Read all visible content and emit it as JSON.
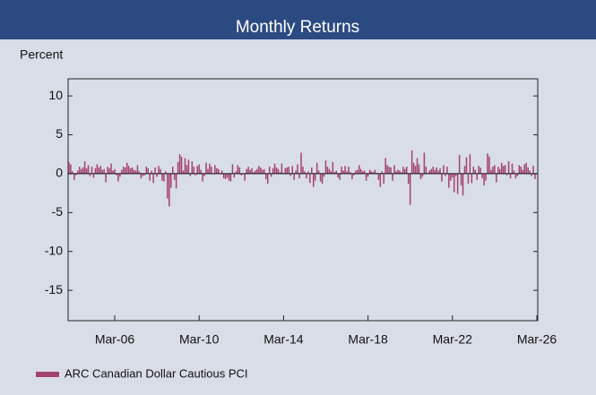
{
  "chart_data": {
    "type": "bar",
    "title": "Monthly Returns",
    "y_label": "Percent",
    "series": [
      {
        "name": "ARC Canadian Dollar Cautious PCI",
        "color": "#a3426f",
        "values": [
          1.5,
          1.2,
          0.3,
          -0.8,
          -0.2,
          0.4,
          0.9,
          0.6,
          0.8,
          1.6,
          0.7,
          1.1,
          -0.3,
          0.9,
          -0.5,
          0.7,
          1.2,
          0.8,
          1.0,
          0.5,
          0.6,
          -1.1,
          0.9,
          0.7,
          1.3,
          0.4,
          0.6,
          -0.2,
          -1.0,
          -0.4,
          0.5,
          0.9,
          0.8,
          1.4,
          1.0,
          0.7,
          0.8,
          0.5,
          0.4,
          1.1,
          0.3,
          -0.6,
          -0.3,
          -0.2,
          0.9,
          0.7,
          -0.9,
          0.4,
          -1.2,
          0.8,
          -0.4,
          1.0,
          0.6,
          -0.9,
          -1.0,
          0.3,
          -3.2,
          -4.2,
          -1.8,
          0.9,
          -0.8,
          -1.9,
          1.5,
          2.5,
          2.2,
          0.4,
          2.0,
          1.1,
          1.8,
          -0.3,
          1.6,
          0.9,
          -0.2,
          1.0,
          1.2,
          0.5,
          -1.0,
          -0.3,
          1.4,
          0.6,
          1.3,
          0.9,
          -0.1,
          1.1,
          0.7,
          0.6,
          -0.1,
          0.4,
          -0.6,
          -0.7,
          -0.5,
          -0.9,
          -1.0,
          1.2,
          -0.5,
          0.3,
          1.1,
          0.8,
          -0.2,
          -0.1,
          -0.9,
          0.6,
          0.9,
          0.5,
          0.7,
          0.2,
          0.4,
          0.6,
          1.0,
          0.8,
          0.5,
          0.6,
          -0.7,
          -1.3,
          0.9,
          -0.4,
          0.7,
          1.3,
          0.8,
          0.6,
          0.2,
          1.3,
          0.1,
          0.7,
          0.8,
          0.9,
          -0.3,
          1.0,
          -0.8,
          0.4,
          1.2,
          -0.6,
          2.7,
          0.9,
          0.3,
          -0.6,
          0.3,
          -1.2,
          0.8,
          -1.7,
          -0.9,
          1.4,
          0.4,
          -1.0,
          -1.3,
          -0.4,
          1.7,
          0.9,
          0.6,
          0.3,
          1.5,
          0.2,
          0.4,
          -0.5,
          -0.8,
          0.9,
          0.4,
          1.0,
          0.3,
          0.9,
          0.2,
          -0.7,
          -0.2,
          0.4,
          0.5,
          1.1,
          0.6,
          0.3,
          0.4,
          -0.9,
          -0.4,
          0.5,
          0.3,
          0.2,
          0.5,
          0.1,
          -0.8,
          -1.7,
          0.3,
          -1.3,
          2.0,
          1.1,
          0.9,
          0.8,
          -0.9,
          1.1,
          0.3,
          0.5,
          0.4,
          0.2,
          0.9,
          0.6,
          0.9,
          -1.3,
          -4.0,
          3.0,
          1.4,
          1.0,
          2.0,
          1.2,
          -0.7,
          -0.4,
          2.7,
          0.9,
          0.1,
          0.4,
          0.6,
          0.9,
          0.5,
          0.8,
          0.4,
          0.7,
          -1.0,
          1.1,
          -0.3,
          0.9,
          -1.8,
          -0.9,
          -0.5,
          -2.4,
          -0.3,
          -2.6,
          2.4,
          -1.5,
          -2.8,
          1.0,
          2.1,
          -1.3,
          2.5,
          -1.2,
          0.9,
          0.5,
          -0.8,
          1.0,
          0.8,
          -0.6,
          -1.5,
          -0.9,
          2.6,
          2.2,
          0.5,
          0.9,
          1.1,
          -1.1,
          0.9,
          0.6,
          1.4,
          1.0,
          1.1,
          -0.2,
          1.6,
          -0.6,
          1.3,
          0.4,
          -0.6,
          -0.3,
          1.1,
          0.9,
          0.5,
          1.2,
          1.4,
          0.8,
          0.4,
          -0.3,
          1.0,
          -0.7
        ]
      }
    ],
    "x": [
      "2004-01",
      "2004-02",
      "2004-03",
      "2004-04",
      "2004-05",
      "2004-06",
      "2004-07",
      "2004-08",
      "2004-09",
      "2004-10",
      "2004-11",
      "2004-12",
      "2005-01",
      "2005-02",
      "2005-03",
      "2005-04",
      "2005-05",
      "2005-06",
      "2005-07",
      "2005-08",
      "2005-09",
      "2005-10",
      "2005-11",
      "2005-12",
      "2006-01",
      "2006-02",
      "2006-03",
      "2006-04",
      "2006-05",
      "2006-06",
      "2006-07",
      "2006-08",
      "2006-09",
      "2006-10",
      "2006-11",
      "2006-12",
      "2007-01",
      "2007-02",
      "2007-03",
      "2007-04",
      "2007-05",
      "2007-06",
      "2007-07",
      "2007-08",
      "2007-09",
      "2007-10",
      "2007-11",
      "2007-12",
      "2008-01",
      "2008-02",
      "2008-03",
      "2008-04",
      "2008-05",
      "2008-06",
      "2008-07",
      "2008-08",
      "2008-09",
      "2008-10",
      "2008-11",
      "2008-12",
      "2009-01",
      "2009-02",
      "2009-03",
      "2009-04",
      "2009-05",
      "2009-06",
      "2009-07",
      "2009-08",
      "2009-09",
      "2009-10",
      "2009-11",
      "2009-12",
      "2010-01",
      "2010-02",
      "2010-03",
      "2010-04",
      "2010-05",
      "2010-06",
      "2010-07",
      "2010-08",
      "2010-09",
      "2010-10",
      "2010-11",
      "2010-12",
      "2011-01",
      "2011-02",
      "2011-03",
      "2011-04",
      "2011-05",
      "2011-06",
      "2011-07",
      "2011-08",
      "2011-09",
      "2011-10",
      "2011-11",
      "2011-12",
      "2012-01",
      "2012-02",
      "2012-03",
      "2012-04",
      "2012-05",
      "2012-06",
      "2012-07",
      "2012-08",
      "2012-09",
      "2012-10",
      "2012-11",
      "2012-12",
      "2013-01",
      "2013-02",
      "2013-03",
      "2013-04",
      "2013-05",
      "2013-06",
      "2013-07",
      "2013-08",
      "2013-09",
      "2013-10",
      "2013-11",
      "2013-12",
      "2014-01",
      "2014-02",
      "2014-03",
      "2014-04",
      "2014-05",
      "2014-06",
      "2014-07",
      "2014-08",
      "2014-09",
      "2014-10",
      "2014-11",
      "2014-12",
      "2015-01",
      "2015-02",
      "2015-03",
      "2015-04",
      "2015-05",
      "2015-06",
      "2015-07",
      "2015-08",
      "2015-09",
      "2015-10",
      "2015-11",
      "2015-12",
      "2016-01",
      "2016-02",
      "2016-03",
      "2016-04",
      "2016-05",
      "2016-06",
      "2016-07",
      "2016-08",
      "2016-09",
      "2016-10",
      "2016-11",
      "2016-12",
      "2017-01",
      "2017-02",
      "2017-03",
      "2017-04",
      "2017-05",
      "2017-06",
      "2017-07",
      "2017-08",
      "2017-09",
      "2017-10",
      "2017-11",
      "2017-12",
      "2018-01",
      "2018-02",
      "2018-03",
      "2018-04",
      "2018-05",
      "2018-06",
      "2018-07",
      "2018-08",
      "2018-09",
      "2018-10",
      "2018-11",
      "2018-12",
      "2019-01",
      "2019-02",
      "2019-03",
      "2019-04",
      "2019-05",
      "2019-06",
      "2019-07",
      "2019-08",
      "2019-09",
      "2019-10",
      "2019-11",
      "2019-12",
      "2020-01",
      "2020-02",
      "2020-03",
      "2020-04",
      "2020-05",
      "2020-06",
      "2020-07",
      "2020-08",
      "2020-09",
      "2020-10",
      "2020-11",
      "2020-12",
      "2021-01",
      "2021-02",
      "2021-03",
      "2021-04",
      "2021-05",
      "2021-06",
      "2021-07",
      "2021-08",
      "2021-09",
      "2021-10",
      "2021-11",
      "2021-12",
      "2022-01",
      "2022-02",
      "2022-03",
      "2022-04",
      "2022-05",
      "2022-06",
      "2022-07",
      "2022-08",
      "2022-09",
      "2022-10",
      "2022-11",
      "2022-12",
      "2023-01",
      "2023-02",
      "2023-03",
      "2023-04",
      "2023-05",
      "2023-06",
      "2023-07",
      "2023-08",
      "2023-09",
      "2023-10",
      "2023-11",
      "2023-12",
      "2024-01",
      "2024-02",
      "2024-03",
      "2024-04",
      "2024-05",
      "2024-06",
      "2024-07",
      "2024-08",
      "2024-09",
      "2024-10",
      "2024-11",
      "2024-12",
      "2025-01",
      "2025-02",
      "2025-03",
      "2025-04",
      "2025-05",
      "2025-06",
      "2025-07",
      "2025-08",
      "2025-09",
      "2025-10",
      "2025-11",
      "2025-12",
      "2026-01",
      "2026-02"
    ],
    "xticks": [
      {
        "value": "2006-03",
        "label": "Mar-06"
      },
      {
        "value": "2010-03",
        "label": "Mar-10"
      },
      {
        "value": "2014-03",
        "label": "Mar-14"
      },
      {
        "value": "2018-03",
        "label": "Mar-18"
      },
      {
        "value": "2022-03",
        "label": "Mar-22"
      },
      {
        "value": "2026-03",
        "label": "Mar-26"
      }
    ],
    "ylim": [
      -18.9,
      12.2
    ],
    "yticks": [
      10,
      5,
      0,
      -5,
      -10,
      -15
    ],
    "grid": false,
    "legend": "bottom-left"
  }
}
